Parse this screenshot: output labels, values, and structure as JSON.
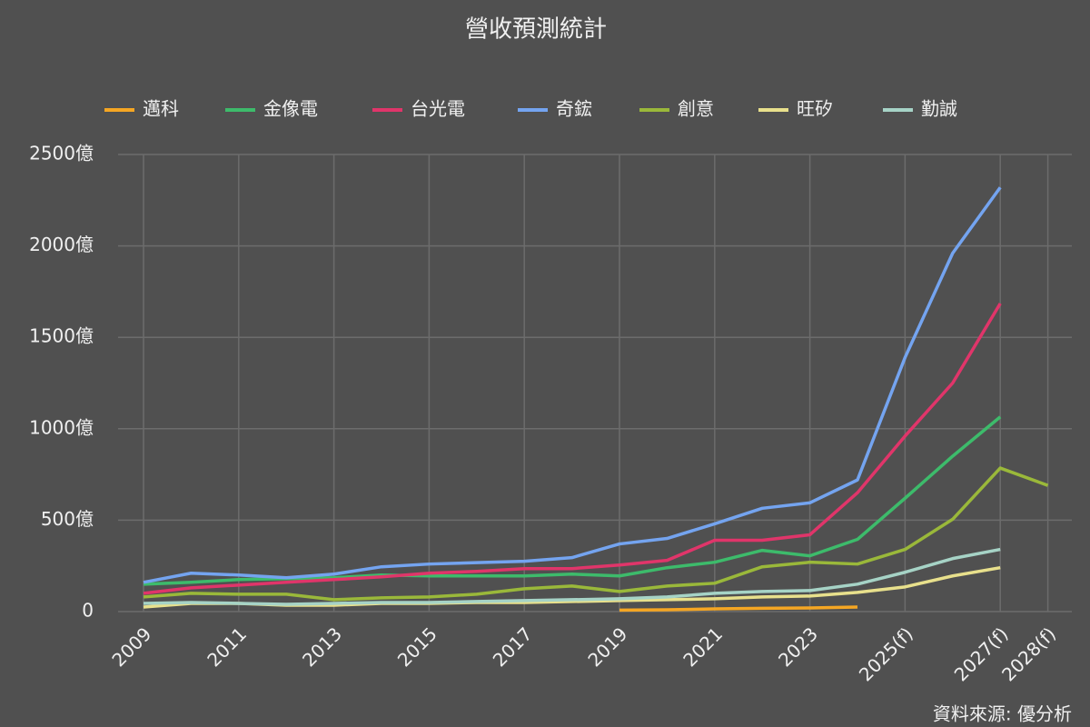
{
  "chart_data": {
    "type": "line",
    "title": "營收預測統計",
    "categories": [
      "2009",
      null,
      "2011",
      null,
      "2013",
      null,
      "2015",
      null,
      "2017",
      null,
      "2019",
      null,
      "2021",
      null,
      "2023",
      null,
      "2025(f)",
      null,
      "2027(f)",
      "2028(f)"
    ],
    "series": [
      {
        "name": "邁科",
        "color": "#f5a623",
        "values": [
          null,
          null,
          null,
          null,
          null,
          null,
          null,
          null,
          null,
          null,
          8,
          10,
          15,
          18,
          20,
          25,
          null,
          null,
          null,
          null
        ]
      },
      {
        "name": "金像電",
        "color": "#3dbb6b",
        "values": [
          150,
          160,
          175,
          180,
          185,
          200,
          195,
          195,
          195,
          205,
          195,
          240,
          270,
          335,
          305,
          395,
          620,
          850,
          1065,
          null
        ]
      },
      {
        "name": "台光電",
        "color": "#e0356a",
        "values": [
          100,
          130,
          145,
          160,
          175,
          190,
          210,
          220,
          235,
          235,
          255,
          280,
          390,
          390,
          420,
          650,
          960,
          1250,
          1685,
          null
        ]
      },
      {
        "name": "奇鋐",
        "color": "#74a4f0",
        "values": [
          160,
          210,
          200,
          185,
          205,
          245,
          260,
          268,
          275,
          295,
          370,
          400,
          480,
          565,
          595,
          720,
          1390,
          1960,
          2320,
          null
        ]
      },
      {
        "name": "創意",
        "color": "#9ab83a",
        "values": [
          80,
          100,
          95,
          95,
          65,
          75,
          80,
          95,
          125,
          140,
          110,
          140,
          155,
          245,
          270,
          260,
          340,
          505,
          785,
          690
        ]
      },
      {
        "name": "旺矽",
        "color": "#e8e08c",
        "values": [
          25,
          45,
          45,
          35,
          35,
          45,
          45,
          50,
          50,
          55,
          60,
          65,
          70,
          80,
          85,
          105,
          135,
          195,
          240,
          null
        ]
      },
      {
        "name": "勤誠",
        "color": "#a6d3c6",
        "values": [
          45,
          50,
          45,
          40,
          45,
          50,
          50,
          55,
          60,
          65,
          70,
          80,
          100,
          110,
          115,
          150,
          215,
          290,
          340,
          null
        ]
      }
    ],
    "ylim": [
      0,
      2500
    ],
    "yticks": [
      0,
      {
        "value": 500,
        "label": "500億"
      },
      {
        "value": 1000,
        "label": "1000億"
      },
      {
        "value": 1500,
        "label": "1500億"
      },
      {
        "value": 2000,
        "label": "2000億"
      },
      {
        "value": 2500,
        "label": "2500億"
      }
    ],
    "grid": true,
    "source": "資料來源: 優分析"
  }
}
